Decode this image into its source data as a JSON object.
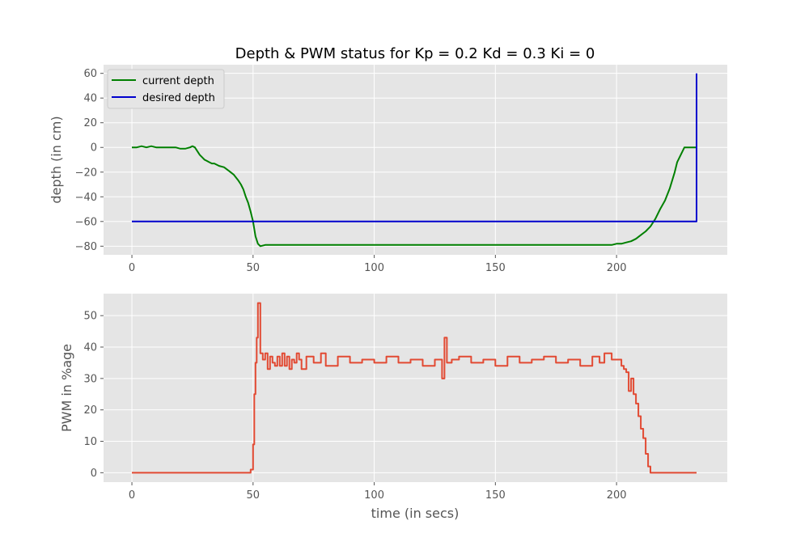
{
  "chart_data": [
    {
      "type": "line",
      "title": "Depth & PWM status for Kp = 0.2 Kd = 0.3 Ki = 0",
      "xlabel": "",
      "ylabel": "depth (in cm)",
      "xlim": [
        -11.7,
        245.7
      ],
      "ylim": [
        -87,
        67
      ],
      "xticks": [
        0,
        50,
        100,
        150,
        200
      ],
      "yticks": [
        -80,
        -60,
        -40,
        -20,
        0,
        20,
        40,
        60
      ],
      "grid": true,
      "legend": "top-left",
      "series": [
        {
          "name": "current depth",
          "color": "#008000",
          "x": [
            0,
            2,
            4,
            6,
            8,
            10,
            12,
            18,
            20,
            22,
            24,
            25,
            26,
            27,
            28,
            29,
            30,
            31,
            32,
            33,
            34,
            35,
            36,
            38,
            40,
            42,
            44,
            45,
            46,
            47,
            48,
            49,
            50,
            51,
            52,
            53,
            55,
            60,
            70,
            80,
            100,
            120,
            140,
            160,
            180,
            190,
            195,
            198,
            200,
            202,
            204,
            206,
            208,
            210,
            212,
            214,
            216,
            218,
            220,
            222,
            224,
            225,
            226,
            227,
            228,
            230,
            233
          ],
          "y": [
            0,
            0,
            1,
            0,
            1,
            0,
            0,
            0,
            -1,
            -1,
            0,
            1,
            0,
            -3,
            -6,
            -8,
            -10,
            -11,
            -12,
            -13,
            -13,
            -14,
            -15,
            -16,
            -19,
            -22,
            -27,
            -30,
            -34,
            -40,
            -45,
            -52,
            -60,
            -72,
            -78,
            -80,
            -79,
            -79,
            -79,
            -79,
            -79,
            -79,
            -79,
            -79,
            -79,
            -79,
            -79,
            -79,
            -78,
            -78,
            -77,
            -76,
            -74,
            -71,
            -68,
            -64,
            -58,
            -50,
            -43,
            -33,
            -20,
            -12,
            -8,
            -4,
            0,
            0,
            0
          ]
        },
        {
          "name": "desired depth",
          "color": "#0000CD",
          "x": [
            0,
            233,
            233
          ],
          "y": [
            -60,
            -60,
            60
          ]
        }
      ]
    },
    {
      "type": "line",
      "title": "",
      "xlabel": "time (in secs)",
      "ylabel": "PWM in %age",
      "xlim": [
        -11.7,
        245.7
      ],
      "ylim": [
        -3,
        57
      ],
      "xticks": [
        0,
        50,
        100,
        150,
        200
      ],
      "yticks": [
        0,
        10,
        20,
        30,
        40,
        50
      ],
      "grid": true,
      "series": [
        {
          "color": "#E24A33",
          "x": [
            0,
            48,
            49,
            50,
            50.5,
            51,
            51.5,
            52,
            53,
            54,
            55,
            56,
            57,
            58,
            59,
            60,
            61,
            62,
            63,
            64,
            65,
            66,
            67,
            68,
            69,
            70,
            72,
            75,
            78,
            80,
            85,
            90,
            95,
            100,
            105,
            110,
            115,
            120,
            125,
            128,
            129,
            130,
            132,
            135,
            140,
            145,
            150,
            155,
            160,
            165,
            170,
            175,
            180,
            185,
            190,
            193,
            195,
            198,
            200,
            202,
            203,
            204,
            205,
            206,
            207,
            208,
            209,
            210,
            211,
            212,
            213,
            214,
            220,
            233
          ],
          "y": [
            0,
            0,
            1,
            9,
            25,
            35,
            43,
            54,
            38,
            36,
            38,
            33,
            37,
            35,
            34,
            37,
            34,
            38,
            34,
            37,
            33,
            36,
            35,
            38,
            36,
            33,
            37,
            35,
            38,
            34,
            37,
            35,
            36,
            35,
            37,
            35,
            36,
            34,
            36,
            30,
            43,
            35,
            36,
            37,
            35,
            36,
            34,
            37,
            35,
            36,
            37,
            35,
            36,
            34,
            37,
            35,
            38,
            36,
            36,
            34,
            33,
            32,
            26,
            30,
            25,
            22,
            18,
            14,
            11,
            6,
            2,
            0,
            0,
            0
          ]
        }
      ]
    }
  ]
}
